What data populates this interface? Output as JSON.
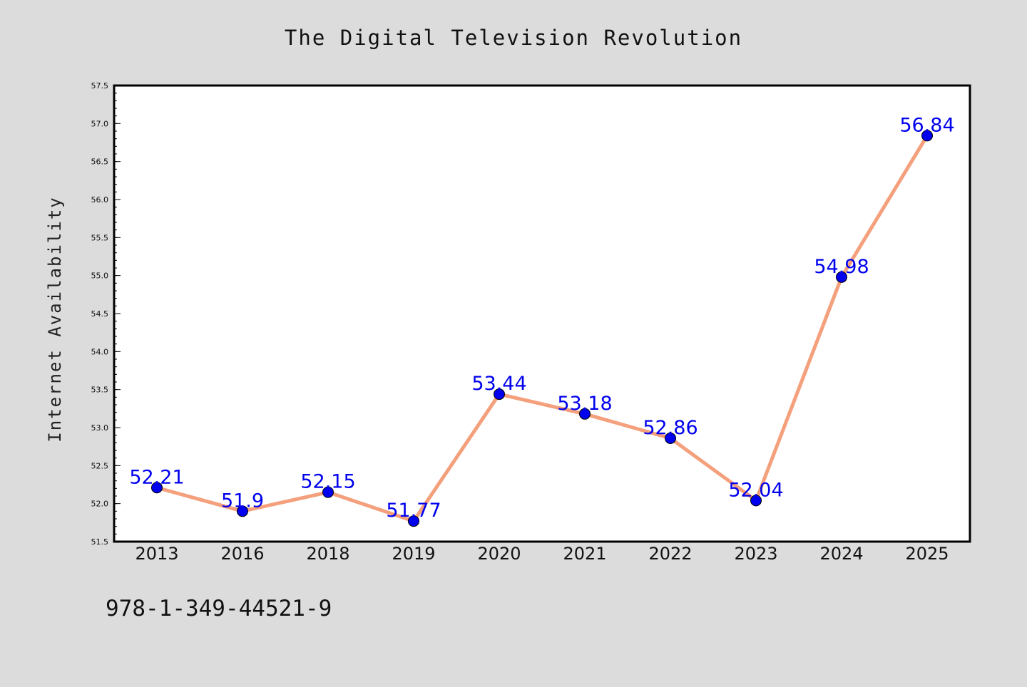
{
  "chart_data": {
    "type": "line",
    "title": "The Digital Television Revolution",
    "xlabel": "",
    "ylabel": "Internet Availability",
    "categories": [
      "2013",
      "2016",
      "2018",
      "2019",
      "2020",
      "2021",
      "2022",
      "2023",
      "2024",
      "2025"
    ],
    "series": [
      {
        "values": [
          52.21,
          51.9,
          52.15,
          51.77,
          53.44,
          53.18,
          52.86,
          52.04,
          54.98,
          56.84
        ],
        "data_labels": [
          "52.21",
          "51.9",
          "52.15",
          "51.77",
          "53.44",
          "53.18",
          "52.86",
          "52.04",
          "54.98",
          "56.84"
        ]
      }
    ],
    "ylim": [
      51.5,
      57.5
    ],
    "yticks": [
      "51.5",
      "52.0",
      "52.5",
      "53.0",
      "53.5",
      "54.0",
      "54.5",
      "55.0",
      "55.5",
      "56.0",
      "56.5",
      "57.0",
      "57.5"
    ],
    "grid": false,
    "legend": "none",
    "colors": {
      "line": "#f4a07c",
      "marker": "#0000ee",
      "data_label": "#0000ee",
      "background": "#dcdcdc",
      "plot_area": "#ffffff"
    }
  },
  "footer": {
    "isbn": "978-1-349-44521-9"
  }
}
